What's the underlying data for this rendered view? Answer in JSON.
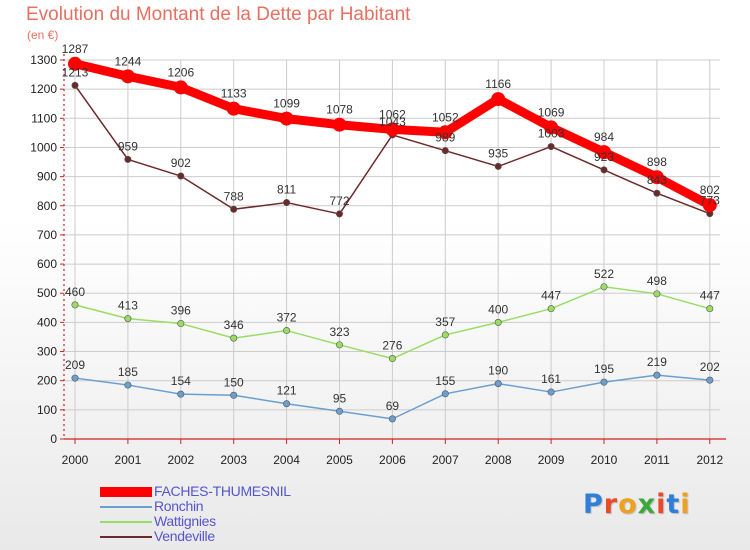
{
  "title": "Evolution du Montant de la Dette par Habitant",
  "unit_label": "(en €)",
  "logo_text": "Proxiti",
  "colors": {
    "title": "#e87060",
    "axis": "#d02020",
    "grid": "#cccccc",
    "faches": "#ff0000",
    "ronchin": "#6b9fd0",
    "wattignies": "#99dd66",
    "vendeville": "#6b2a2a"
  },
  "chart_data": {
    "type": "line",
    "title": "Evolution du Montant de la Dette par Habitant",
    "ylabel": "(en €)",
    "xlabel": "",
    "x": [
      "2000",
      "2001",
      "2002",
      "2003",
      "2004",
      "2005",
      "2006",
      "2007",
      "2008",
      "2009",
      "2010",
      "2011",
      "2012"
    ],
    "ylim": [
      0,
      1300
    ],
    "yticks": [
      0,
      100,
      200,
      300,
      400,
      500,
      600,
      700,
      800,
      900,
      1000,
      1100,
      1200,
      1300
    ],
    "grid": false,
    "legend_position": "bottom-left",
    "series": [
      {
        "name": "FACHES-THUMESNIL",
        "color": "#ff0000",
        "values": [
          1287,
          1244,
          1206,
          1133,
          1099,
          1078,
          1062,
          1052,
          1166,
          1069,
          984,
          898,
          802
        ]
      },
      {
        "name": "Ronchin",
        "color": "#6b9fd0",
        "values": [
          209,
          185,
          154,
          150,
          121,
          95,
          69,
          155,
          190,
          161,
          195,
          219,
          202
        ]
      },
      {
        "name": "Wattignies",
        "color": "#99dd66",
        "values": [
          460,
          413,
          396,
          346,
          372,
          323,
          276,
          357,
          400,
          447,
          522,
          498,
          447
        ]
      },
      {
        "name": "Vendeville",
        "color": "#6b2a2a",
        "values": [
          1213,
          959,
          902,
          788,
          811,
          772,
          1043,
          989,
          935,
          1003,
          923,
          843,
          773
        ]
      }
    ]
  }
}
